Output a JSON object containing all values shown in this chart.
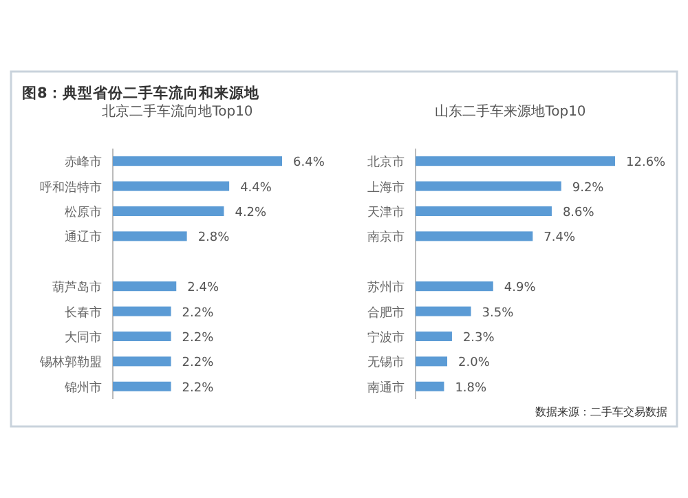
{
  "chart_data": [
    {
      "type": "bar",
      "orientation": "horizontal",
      "title": "北京二手车流向地Top10",
      "annotations": [
        "图8：典型省份二手车流向和来源地"
      ],
      "categories": [
        "赤峰市",
        "呼和浩特市",
        "松原市",
        "通辽市",
        null,
        "葫芦岛市",
        "长春市",
        "大同市",
        "锡林郭勒盟",
        "锦州市"
      ],
      "values": [
        6.4,
        4.4,
        4.2,
        2.8,
        null,
        2.4,
        2.2,
        2.2,
        2.2,
        2.2
      ],
      "value_labels": [
        "6.4%",
        "4.4%",
        "4.2%",
        "2.8%",
        null,
        "2.4%",
        "2.2%",
        "2.2%",
        "2.2%",
        "2.2%"
      ],
      "color": "#5b9bd5"
    },
    {
      "type": "bar",
      "orientation": "horizontal",
      "title": "山东二手车来源地Top10",
      "annotations": [
        "数据来源：二手车交易数据"
      ],
      "categories": [
        "北京市",
        "上海市",
        "天津市",
        "南京市",
        null,
        "苏州市",
        "合肥市",
        "宁波市",
        "无锡市",
        "南通市"
      ],
      "values": [
        12.6,
        9.2,
        8.6,
        7.4,
        null,
        4.9,
        3.5,
        2.3,
        2.0,
        1.8
      ],
      "value_labels": [
        "12.6%",
        "9.2%",
        "8.6%",
        "7.4%",
        null,
        "4.9%",
        "3.5%",
        "2.3%",
        "2.0%",
        "1.8%"
      ],
      "color": "#5b9bd5"
    }
  ]
}
